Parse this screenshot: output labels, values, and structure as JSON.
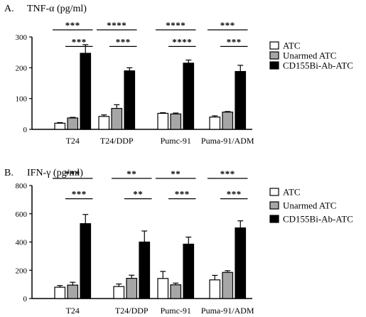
{
  "colors": {
    "ATC": "#ffffff",
    "Unarmed ATC": "#a6a6a6",
    "CD155Bi-Ab-ATC": "#000000"
  },
  "chart_data": [
    {
      "type": "bar",
      "panel_letter": "A.",
      "title": "TNF-α  (pg/ml)",
      "xlabel": "",
      "ylabel": "",
      "categories": [
        "T24",
        "T24/DDP",
        "Pumc-91",
        "Puma-91/ADM"
      ],
      "ylim": [
        0,
        300
      ],
      "yticks": [
        "0",
        "100",
        "200",
        "300"
      ],
      "legend_position": "right",
      "series": [
        {
          "name": "ATC",
          "values": [
            20,
            42,
            52,
            40
          ],
          "errors": [
            2,
            5,
            2,
            4
          ]
        },
        {
          "name": "Unarmed ATC",
          "values": [
            37,
            68,
            50,
            56
          ],
          "errors": [
            2,
            12,
            3,
            2
          ]
        },
        {
          "name": "CD155Bi-Ab-ATC",
          "values": [
            247,
            190,
            215,
            188
          ],
          "errors": [
            28,
            10,
            10,
            20
          ]
        }
      ],
      "significance": [
        {
          "category": 0,
          "pair": [
            0,
            2
          ],
          "label": "***"
        },
        {
          "category": 0,
          "pair": [
            1,
            2
          ],
          "label": "***"
        },
        {
          "category": 1,
          "pair": [
            0,
            2
          ],
          "label": "****"
        },
        {
          "category": 1,
          "pair": [
            1,
            2
          ],
          "label": "***"
        },
        {
          "category": 2,
          "pair": [
            0,
            2
          ],
          "label": "****"
        },
        {
          "category": 2,
          "pair": [
            1,
            2
          ],
          "label": "****"
        },
        {
          "category": 3,
          "pair": [
            0,
            2
          ],
          "label": "***"
        },
        {
          "category": 3,
          "pair": [
            1,
            2
          ],
          "label": "***"
        }
      ]
    },
    {
      "type": "bar",
      "panel_letter": "B.",
      "title": "IFN-γ (pg/ml)",
      "xlabel": "",
      "ylabel": "",
      "categories": [
        "T24",
        "T24/DDP",
        "Pumc-91",
        "Puma-91/ADM"
      ],
      "ylim": [
        0,
        800
      ],
      "yticks": [
        "0",
        "200",
        "400",
        "600",
        "800"
      ],
      "legend_position": "right",
      "series": [
        {
          "name": "ATC",
          "values": [
            80,
            85,
            142,
            132
          ],
          "errors": [
            12,
            18,
            50,
            32
          ]
        },
        {
          "name": "Unarmed ATC",
          "values": [
            95,
            143,
            97,
            185
          ],
          "errors": [
            20,
            22,
            12,
            12
          ]
        },
        {
          "name": "CD155Bi-Ab-ATC",
          "values": [
            530,
            400,
            385,
            500
          ],
          "errors": [
            65,
            78,
            50,
            50
          ]
        }
      ],
      "significance": [
        {
          "category": 0,
          "pair": [
            0,
            2
          ],
          "label": "***"
        },
        {
          "category": 0,
          "pair": [
            1,
            2
          ],
          "label": "***"
        },
        {
          "category": 1,
          "pair": [
            0,
            2
          ],
          "label": "**"
        },
        {
          "category": 1,
          "pair": [
            1,
            2
          ],
          "label": "**"
        },
        {
          "category": 2,
          "pair": [
            0,
            2
          ],
          "label": "**"
        },
        {
          "category": 2,
          "pair": [
            1,
            2
          ],
          "label": "***"
        },
        {
          "category": 3,
          "pair": [
            0,
            2
          ],
          "label": "***"
        },
        {
          "category": 3,
          "pair": [
            1,
            2
          ],
          "label": "***"
        }
      ]
    }
  ]
}
